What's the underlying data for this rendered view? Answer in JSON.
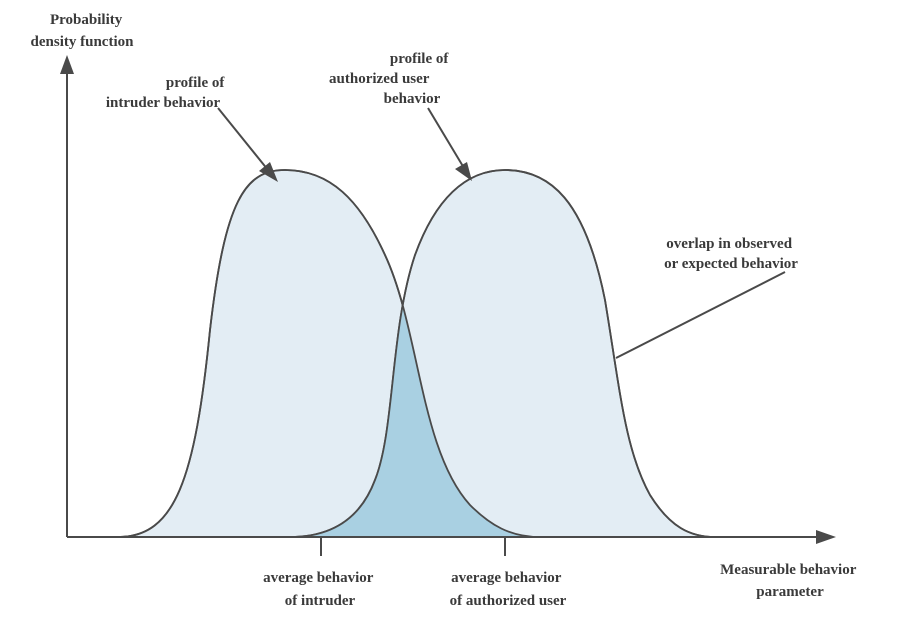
{
  "y_axis_label": [
    "Probability",
    "density function"
  ],
  "x_axis_label": [
    "Measurable behavior",
    "parameter"
  ],
  "annotations": {
    "intruder_profile": [
      "profile of",
      "intruder behavior"
    ],
    "authorized_profile": [
      "profile of",
      "authorized user",
      "behavior"
    ],
    "overlap": [
      "overlap in observed",
      "or expected behavior"
    ]
  },
  "markers": {
    "intruder_average": [
      "average behavior",
      "of intruder"
    ],
    "authorized_average": [
      "average behavior",
      "of authorized user"
    ]
  },
  "colors": {
    "curve_fill": "#e3edf4",
    "overlap_fill": "#a9d0e2",
    "stroke": "#4a4a4a"
  }
}
